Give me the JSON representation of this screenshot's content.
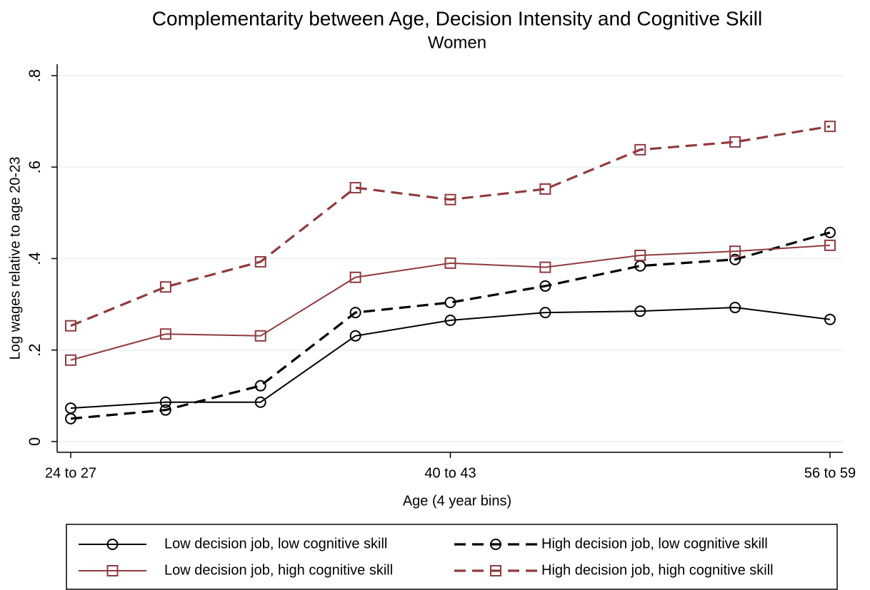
{
  "chart_data": {
    "type": "line",
    "title": "Complementarity between Age, Decision Intensity and Cognitive Skill",
    "subtitle": "Women",
    "x_label": "Age (4 year bins)",
    "y_label": "Log wages relative to age 20-23",
    "categories": [
      "24 to 27",
      null,
      null,
      null,
      "40 to 43",
      null,
      null,
      null,
      "56 to 59"
    ],
    "ylim": [
      -0.022,
      0.8
    ],
    "yticks": [
      0,
      {
        "value": 0.2,
        "label": ".2"
      },
      {
        "value": 0.4,
        "label": ".4"
      },
      {
        "value": 0.6,
        "label": ".6"
      },
      {
        "value": 0.8,
        "label": ".8"
      }
    ],
    "grid": true,
    "legend_position": "bottom",
    "series": [
      {
        "name": "Low decision job, low cognitive skill",
        "color": "#000000",
        "line_style": "solid",
        "marker": "circle",
        "values": [
          0.073,
          0.086,
          0.086,
          0.231,
          0.265,
          0.282,
          0.285,
          0.293,
          0.267
        ]
      },
      {
        "name": "High decision job, low cognitive skill",
        "color": "#000000",
        "line_style": "dashed",
        "marker": "circle",
        "values": [
          0.05,
          0.069,
          0.122,
          0.282,
          0.304,
          0.34,
          0.384,
          0.398,
          0.457
        ]
      },
      {
        "name": "Low decision job, high cognitive skill",
        "color": "#903a3e",
        "line_style": "solid",
        "marker": "square",
        "values": [
          0.178,
          0.235,
          0.231,
          0.359,
          0.39,
          0.381,
          0.407,
          0.416,
          0.429
        ]
      },
      {
        "name": "High decision job, high cognitive skill",
        "color": "#903a3e",
        "line_style": "dashed",
        "marker": "square",
        "values": [
          0.253,
          0.338,
          0.393,
          0.555,
          0.529,
          0.552,
          0.638,
          0.655,
          0.689
        ]
      }
    ]
  }
}
